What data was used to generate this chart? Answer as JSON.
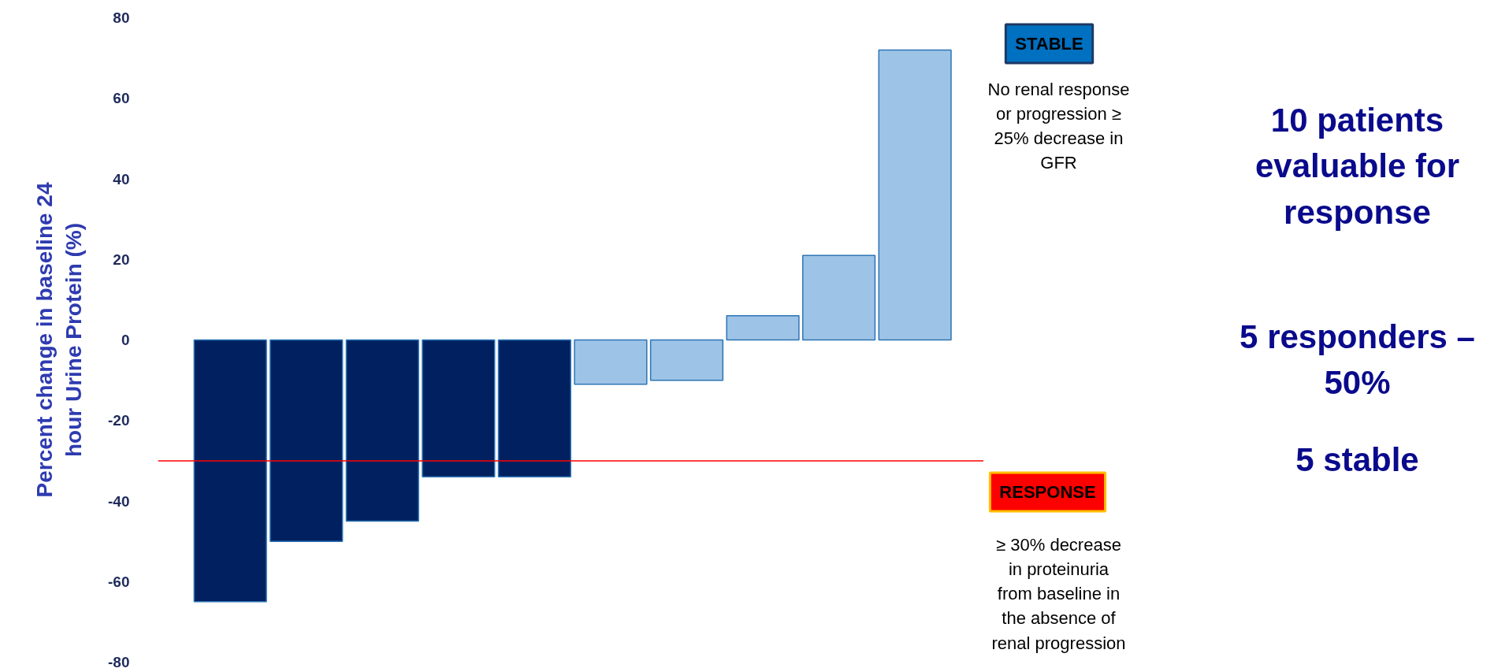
{
  "chart_data": {
    "type": "bar",
    "ylabel": "Percent change in baseline 24\nhour Urine Protein (%)",
    "categories": [
      null,
      null,
      null,
      null,
      null,
      null,
      null,
      null,
      null,
      null
    ],
    "values": [
      -65,
      -50,
      -45,
      -34,
      -34,
      -11,
      -10,
      6,
      21,
      72
    ],
    "colors": [
      "#002060",
      "#002060",
      "#002060",
      "#002060",
      "#002060",
      "#9dc3e6",
      "#9dc3e6",
      "#9dc3e6",
      "#9dc3e6",
      "#9dc3e6"
    ],
    "ylim": [
      -80,
      80
    ],
    "yticks": [
      -80,
      -60,
      -40,
      -20,
      0,
      20,
      40,
      60,
      80
    ],
    "grid": false,
    "tick_labels": "y",
    "ref_lines": [
      {
        "axis": "y",
        "value": -30,
        "label": null,
        "color": "#ff0000",
        "line_style": "solid"
      }
    ],
    "annotations": [
      "STABLE",
      "No renal response\nor progression ≥\n25% decrease in\nGFR",
      "RESPONSE",
      "≥ 30% decrease\nin proteinuria\nfrom baseline in\nthe absence of\nrenal progression",
      "10 patients\nevaluable for\nresponse",
      "5 responders –\n50%",
      "5 stable"
    ]
  }
}
